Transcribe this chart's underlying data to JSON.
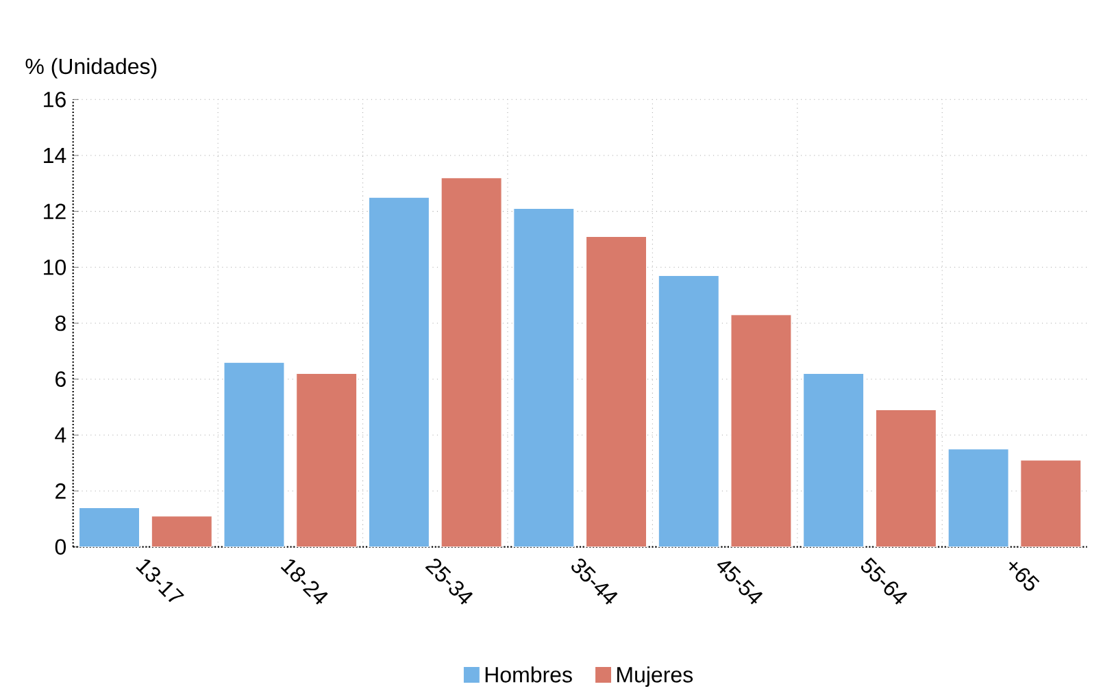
{
  "chart_data": {
    "type": "bar",
    "ylabel": "% (Unidades)",
    "categories": [
      "13-17",
      "18-24",
      "25-34",
      "35-44",
      "45-54",
      "55-64",
      "+65"
    ],
    "series": [
      {
        "name": "Hombres",
        "color": "#73b3e7",
        "values": [
          1.4,
          6.6,
          12.5,
          12.1,
          9.7,
          6.2,
          3.5
        ]
      },
      {
        "name": "Mujeres",
        "color": "#d97a6a",
        "values": [
          1.1,
          6.2,
          13.2,
          11.1,
          8.3,
          4.9,
          3.1
        ]
      }
    ],
    "ylim": [
      0,
      16
    ],
    "yticks": [
      0,
      2,
      4,
      6,
      8,
      10,
      12,
      14,
      16
    ],
    "grid": true,
    "legend": "bottom"
  }
}
